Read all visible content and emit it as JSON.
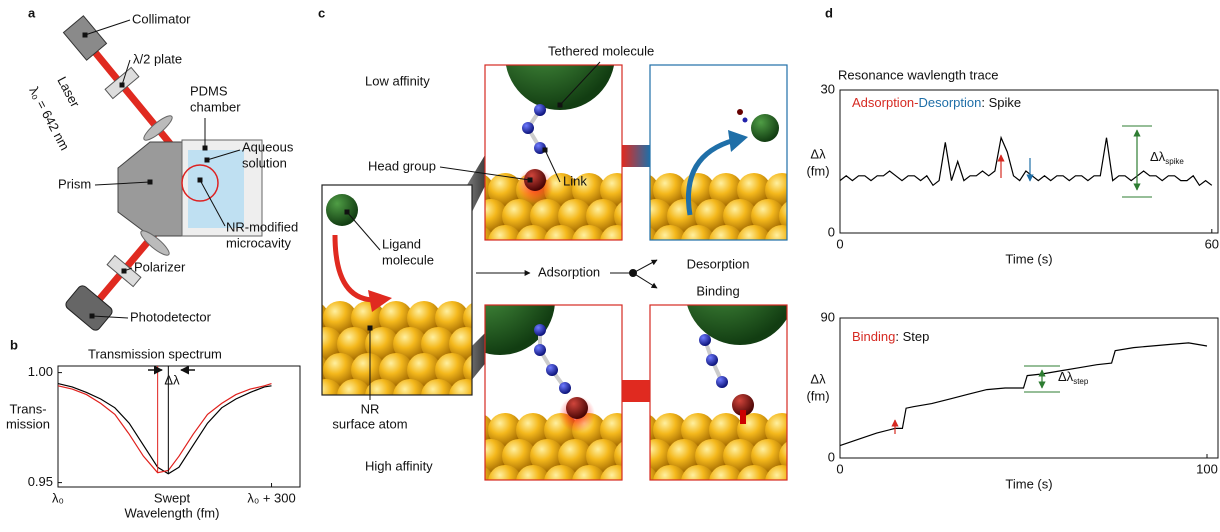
{
  "panel_labels": [
    "a",
    "b",
    "c",
    "d"
  ],
  "setup": {
    "collimator": "Collimator",
    "half_wave_plate": "λ/2 plate",
    "chamber": [
      "PDMS",
      "chamber"
    ],
    "solution": [
      "Aqueous",
      "solution"
    ],
    "prism": "Prism",
    "microcavity": [
      "NR-modified",
      "microcavity"
    ],
    "polarizer": "Polarizer",
    "photodetector": "Photodetector",
    "laser": "Laser",
    "wavelength": "λ₀ = 642 nm"
  },
  "mechanism": {
    "low_affinity": "Low affinity",
    "high_affinity": "High affinity",
    "tethered": "Tethered molecule",
    "head_group": "Head group",
    "link": "Link",
    "ligand": [
      "Ligand",
      "molecule"
    ],
    "surface_atom": [
      "NR",
      "surface atom"
    ],
    "adsorption": "Adsorption",
    "desorption": "Desorption",
    "binding": "Binding"
  },
  "chart_data": [
    {
      "type": "line",
      "title": "Transmission spectrum",
      "ylabel": [
        "Trans-",
        "mission"
      ],
      "xlabel": [
        "Swept",
        "Wavelength (fm)"
      ],
      "annotation": "Δλ",
      "x": [
        0,
        20,
        40,
        60,
        80,
        100,
        120,
        140,
        155,
        170,
        190,
        210,
        230,
        250,
        270,
        290,
        300
      ],
      "series": [
        {
          "color": "#000000",
          "values": [
            0.995,
            0.9935,
            0.991,
            0.988,
            0.984,
            0.977,
            0.967,
            0.957,
            0.954,
            0.957,
            0.967,
            0.977,
            0.984,
            0.988,
            0.991,
            0.9935,
            0.994
          ]
        },
        {
          "color": "#e0201c",
          "values": [
            0.994,
            0.9925,
            0.99,
            0.986,
            0.981,
            0.972,
            0.962,
            0.9545,
            0.9555,
            0.962,
            0.972,
            0.981,
            0.986,
            0.99,
            0.9925,
            0.994,
            0.995
          ]
        }
      ],
      "xlim": [
        0,
        340
      ],
      "ylim": [
        0.948,
        1.003
      ],
      "xticks": [
        {
          "value": 0,
          "label": "λ₀"
        },
        {
          "value": 300,
          "label": "λ₀ + 300"
        }
      ],
      "yticks": [
        0.95,
        {
          "value": 1,
          "label": "1.00"
        }
      ]
    },
    {
      "type": "line",
      "title": "Resonance wavlength trace",
      "subtitle_parts": [
        "Adsorption",
        "-",
        "Desorption",
        ": Spike"
      ],
      "subtitle_colors": [
        "#d62a22",
        "#d62a22",
        "#1f6fa8",
        "#111111"
      ],
      "annotation": [
        "Δλ",
        "spike"
      ],
      "ylabel": [
        "Δλ",
        "(fm)"
      ],
      "xlabel": "Time (s)",
      "x": [
        0,
        1,
        2,
        3,
        4,
        5,
        6,
        7,
        8,
        9,
        10,
        11,
        12,
        13,
        14,
        15,
        16,
        17,
        18,
        19,
        20,
        21,
        22,
        23,
        24,
        25,
        26,
        27,
        28,
        29,
        30,
        31,
        32,
        33,
        34,
        35,
        36,
        37,
        38,
        39,
        40,
        41,
        42,
        43,
        44,
        45,
        46,
        47,
        48,
        49,
        50,
        51,
        52,
        53,
        54,
        55,
        56,
        57,
        58,
        59,
        60
      ],
      "series": [
        {
          "color": "#000000",
          "values": [
            11,
            12,
            11,
            12,
            12,
            11,
            12,
            12,
            13,
            12,
            11,
            12,
            12,
            11,
            12,
            10,
            11,
            19,
            11,
            15,
            11,
            12,
            12,
            13,
            12,
            13,
            20,
            17,
            12,
            11,
            13,
            12,
            11,
            12,
            11,
            12,
            12,
            11,
            12,
            12,
            11,
            12,
            12,
            20,
            11,
            12,
            12,
            11,
            12,
            13,
            12,
            12,
            11,
            12,
            12,
            11,
            11,
            12,
            10,
            11,
            10
          ]
        }
      ],
      "xlim": [
        0,
        61
      ],
      "ylim": [
        0,
        30
      ],
      "xticks": [
        0,
        60
      ],
      "yticks": [
        0,
        30
      ]
    },
    {
      "type": "line",
      "subtitle_parts": [
        "Binding",
        ": Step"
      ],
      "subtitle_colors": [
        "#d62a22",
        "#111111"
      ],
      "annotation": [
        "Δλ",
        "step"
      ],
      "ylabel": [
        "Δλ",
        "(fm)"
      ],
      "xlabel": "Time (s)",
      "x": [
        0,
        5,
        10,
        15,
        17,
        18,
        20,
        25,
        30,
        35,
        40,
        45,
        50,
        51,
        55,
        60,
        65,
        70,
        74,
        75,
        80,
        85,
        90,
        95,
        100
      ],
      "series": [
        {
          "color": "#000000",
          "values": [
            8,
            12,
            16,
            19,
            19,
            32,
            33,
            35,
            38,
            41,
            44,
            45,
            45,
            53,
            54,
            56,
            58,
            60,
            61,
            69,
            71,
            72,
            73,
            74,
            72
          ]
        }
      ],
      "xlim": [
        0,
        103
      ],
      "ylim": [
        0,
        90
      ],
      "xticks": [
        0,
        100
      ],
      "yticks": [
        0,
        90
      ]
    }
  ]
}
